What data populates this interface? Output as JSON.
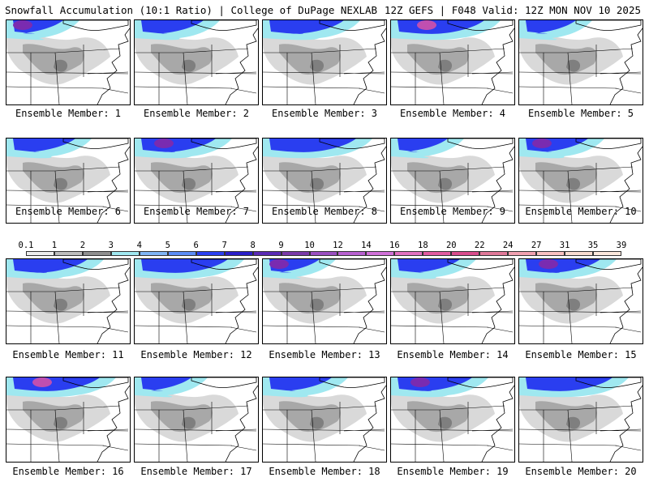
{
  "header": {
    "title_left": "Snowfall Accumulation (10:1 Ratio) | College of DuPage NEXLAB",
    "title_right": "12Z GEFS | F048 Valid: 12Z MON NOV 10 2025"
  },
  "panels": [
    {
      "label": "Ensemble Member: 1"
    },
    {
      "label": "Ensemble Member: 2"
    },
    {
      "label": "Ensemble Member: 3"
    },
    {
      "label": "Ensemble Member: 4"
    },
    {
      "label": "Ensemble Member: 5"
    },
    {
      "label": "Ensemble Member: 6"
    },
    {
      "label": "Ensemble Member: 7"
    },
    {
      "label": "Ensemble Member: 8"
    },
    {
      "label": "Ensemble Member: 9"
    },
    {
      "label": "Ensemble Member: 10"
    },
    {
      "label": "Ensemble Member: 11"
    },
    {
      "label": "Ensemble Member: 12"
    },
    {
      "label": "Ensemble Member: 13"
    },
    {
      "label": "Ensemble Member: 14"
    },
    {
      "label": "Ensemble Member: 15"
    },
    {
      "label": "Ensemble Member: 16"
    },
    {
      "label": "Ensemble Member: 17"
    },
    {
      "label": "Ensemble Member: 18"
    },
    {
      "label": "Ensemble Member: 19"
    },
    {
      "label": "Ensemble Member: 20"
    }
  ],
  "legend": {
    "labels": [
      "0.1",
      "1",
      "2",
      "3",
      "4",
      "5",
      "6",
      "7",
      "8",
      "9",
      "10",
      "12",
      "14",
      "16",
      "18",
      "20",
      "22",
      "24",
      "27",
      "31",
      "35",
      "39"
    ],
    "colors": [
      "#eeeeee",
      "#bdbdbd",
      "#8f8f8f",
      "#9fe8f0",
      "#7fb4f5",
      "#5b8cf5",
      "#2a3ef0",
      "#2a1fc8",
      "#5a2bb5",
      "#7a3aa8",
      "#9a4fc0",
      "#b860d0",
      "#d070d8",
      "#e070c0",
      "#e05aa0",
      "#d84c8c",
      "#e07898",
      "#f0a0b0",
      "#f8c0c0",
      "#f8dcd0",
      "#fbe8dc"
    ]
  },
  "colors": {
    "snow_light": "#d9d9d9",
    "snow_mid": "#a8a8a8",
    "snow_dark": "#7f7f7f",
    "snow_cyan": "#9fe8f0",
    "snow_blue": "#2a3ef0",
    "snow_purple": "#7a2bb0",
    "snow_magenta": "#c04fb0",
    "borders": "#000000"
  }
}
